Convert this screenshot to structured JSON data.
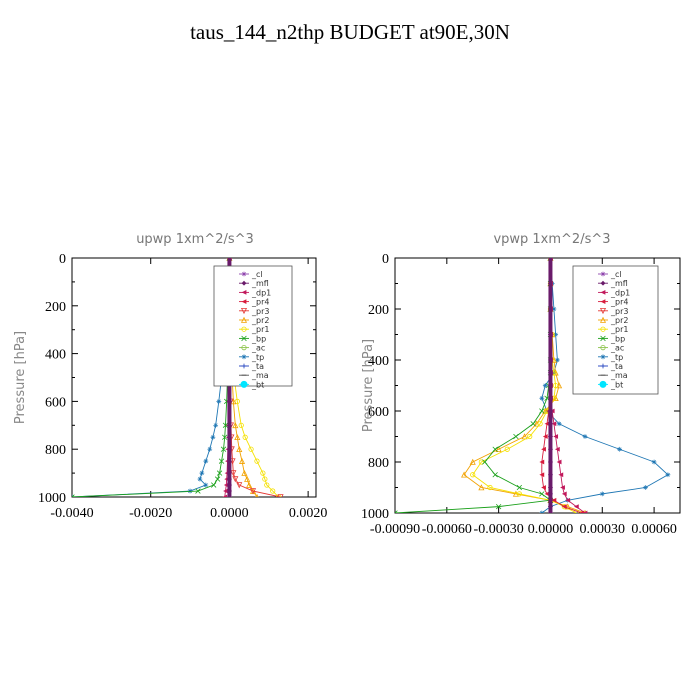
{
  "figure_title": "taus_144_n2thp  BUDGET at90E,30N",
  "colors": {
    "_cl": "#8e44ad",
    "_mfl": "#6a1b6a",
    "_dp1": "#c2185b",
    "_pr4": "#d81b3c",
    "_pr3": "#e53935",
    "_pr2": "#f2a200",
    "_pr1": "#f5e100",
    "_bp": "#1aa01a",
    "_ac": "#8bc34a",
    "_tp": "#1f77b4",
    "_ta": "#1f3fbf",
    "_ma": "#555555",
    "_bt": "#00e5ff"
  },
  "legend_entries": [
    "_cl",
    "_mfl",
    "_dp1",
    "_pr4",
    "_pr3",
    "_pr2",
    "_pr1",
    "_bp",
    "_ac",
    "_tp",
    "_ta",
    "_ma",
    "_bt"
  ],
  "chart_data": [
    {
      "type": "line",
      "title": "upwp   1xm^2/s^3",
      "xlabel": "",
      "ylabel": "Pressure [hPa]",
      "xlim": [
        -0.004,
        0.0022
      ],
      "ylim": [
        1000,
        0
      ],
      "xticks": [
        -0.004,
        -0.002,
        0.0,
        0.002
      ],
      "xtick_labels": [
        "-0.0040",
        "-0.0020",
        "0.0000",
        "0.0020"
      ],
      "yticks": [
        0,
        200,
        400,
        600,
        800,
        1000
      ],
      "ytick_labels": [
        "0",
        "200",
        "400",
        "600",
        "800",
        "1000"
      ],
      "legend_position": "top-right",
      "pressure": [
        0,
        100,
        200,
        300,
        400,
        500,
        600,
        700,
        750,
        800,
        850,
        900,
        925,
        950,
        975,
        1000
      ],
      "series": [
        {
          "name": "_tp",
          "values": [
            0,
            -2e-05,
            -5e-05,
            -0.0001,
            -0.00015,
            -0.0002,
            -0.00027,
            -0.00035,
            -0.00042,
            -0.0005,
            -0.0006,
            -0.0007,
            -0.00075,
            -0.0006,
            -0.001,
            -0.004
          ]
        },
        {
          "name": "_pr1",
          "values": [
            0,
            1e-05,
            3e-05,
            5e-05,
            8e-05,
            0.00012,
            0.0002,
            0.0003,
            0.0004,
            0.00055,
            0.0007,
            0.00085,
            0.0009,
            0.00095,
            0.0011,
            0.00125
          ]
        },
        {
          "name": "_pr2",
          "values": [
            0,
            1e-05,
            2e-05,
            3e-05,
            5e-05,
            7e-05,
            0.0001,
            0.00015,
            0.0002,
            0.00025,
            0.00032,
            0.00038,
            0.00045,
            0.0005,
            0.0006,
            0.0007
          ]
        },
        {
          "name": "_bp",
          "values": [
            0,
            -1e-05,
            -2e-05,
            -3e-05,
            -4e-05,
            -5e-05,
            -7e-05,
            -0.0001,
            -0.00012,
            -0.00015,
            -0.0002,
            -0.00025,
            -0.0003,
            -0.0004,
            -0.0008,
            -0.004
          ]
        },
        {
          "name": "_pr3",
          "values": [
            0,
            1e-05,
            1e-05,
            2e-05,
            2e-05,
            3e-05,
            3e-05,
            4e-05,
            5e-05,
            6e-05,
            8e-05,
            0.0001,
            0.00015,
            0.00025,
            0.0006,
            0.0013
          ]
        },
        {
          "name": "_dp1",
          "values": [
            0,
            0.0,
            -1e-05,
            -1e-05,
            -2e-05,
            -2e-05,
            -2e-05,
            -3e-05,
            -3e-05,
            -4e-05,
            -5e-05,
            -6e-05,
            -7e-05,
            -8e-05,
            -0.0001,
            -0.00012
          ]
        },
        {
          "name": "_cl",
          "values": [
            0,
            0,
            0,
            0,
            0,
            0,
            0,
            0,
            0,
            0,
            0,
            0,
            0,
            0,
            0,
            0
          ]
        },
        {
          "name": "_mfl",
          "values": [
            0,
            0,
            0,
            0,
            0,
            0,
            0,
            0,
            0,
            0,
            0,
            0,
            0,
            0,
            0,
            0
          ]
        }
      ]
    },
    {
      "type": "line",
      "title": "vpwp   1xm^2/s^3",
      "xlabel": "",
      "ylabel": "Pressure [hPa]",
      "xlim": [
        -0.0009,
        0.00075
      ],
      "ylim": [
        1000,
        0
      ],
      "xticks": [
        -0.0009,
        -0.0006,
        -0.0003,
        0.0,
        0.0003,
        0.0006
      ],
      "xtick_labels": [
        "-0.00090",
        "-0.00060",
        "-0.00030",
        "0.00000",
        "0.00030",
        "0.00060"
      ],
      "yticks": [
        0,
        200,
        400,
        600,
        800,
        1000
      ],
      "ytick_labels": [
        "0",
        "200",
        "400",
        "600",
        "800",
        "1000"
      ],
      "legend_position": "top-right",
      "pressure": [
        0,
        100,
        200,
        300,
        400,
        450,
        500,
        550,
        600,
        650,
        700,
        750,
        800,
        850,
        900,
        925,
        950,
        975,
        1000
      ],
      "series": [
        {
          "name": "_tp",
          "values": [
            0,
            1e-05,
            2e-05,
            3e-05,
            4e-05,
            2e-05,
            -3e-05,
            -5e-05,
            -2e-05,
            5e-05,
            0.0002,
            0.0004,
            0.0006,
            0.00068,
            0.00055,
            0.0003,
            0.0001,
            0.0,
            -5e-05
          ]
        },
        {
          "name": "_pr2",
          "values": [
            0,
            0.0,
            0.0,
            1e-05,
            2e-05,
            3e-05,
            5e-05,
            3e-05,
            -3e-05,
            -8e-05,
            -0.00015,
            -0.0003,
            -0.00045,
            -0.0005,
            -0.0004,
            -0.0002,
            0.0,
            0.0001,
            0.0002
          ]
        },
        {
          "name": "_pr1",
          "values": [
            0,
            0.0,
            0.0,
            1e-05,
            1e-05,
            2e-05,
            3e-05,
            2e-05,
            -2e-05,
            -6e-05,
            -0.00012,
            -0.00025,
            -0.0004,
            -0.00045,
            -0.00035,
            -0.00018,
            0.0,
            8e-05,
            0.00015
          ]
        },
        {
          "name": "_bp",
          "values": [
            0,
            0.0,
            0.0,
            0.0,
            0.0,
            0.0,
            -1e-05,
            -2e-05,
            -5e-05,
            -0.0001,
            -0.0002,
            -0.00032,
            -0.00038,
            -0.00032,
            -0.00018,
            -5e-05,
            0.0,
            -0.0003,
            -0.0009
          ]
        },
        {
          "name": "_dp1",
          "values": [
            0,
            0,
            0,
            0,
            0,
            0,
            0,
            0,
            1e-05,
            2e-05,
            3e-05,
            4e-05,
            5e-05,
            6e-05,
            7e-05,
            8e-05,
            0.0001,
            0.00015,
            0.0002
          ]
        },
        {
          "name": "_pr4",
          "values": [
            0,
            0,
            0,
            0,
            0,
            0,
            0,
            0,
            -1e-05,
            -2e-05,
            -3e-05,
            -4e-05,
            -5e-05,
            -5e-05,
            -4e-05,
            -2e-05,
            2e-05,
            8e-05,
            0.00018
          ]
        },
        {
          "name": "_cl",
          "values": [
            0,
            0,
            0,
            0,
            0,
            0,
            0,
            0,
            0,
            0,
            0,
            0,
            0,
            0,
            0,
            0,
            0,
            0,
            0
          ]
        },
        {
          "name": "_mfl",
          "values": [
            0,
            0,
            0,
            0,
            0,
            0,
            0,
            0,
            0,
            0,
            0,
            0,
            0,
            0,
            0,
            0,
            0,
            0,
            0
          ]
        }
      ]
    }
  ]
}
